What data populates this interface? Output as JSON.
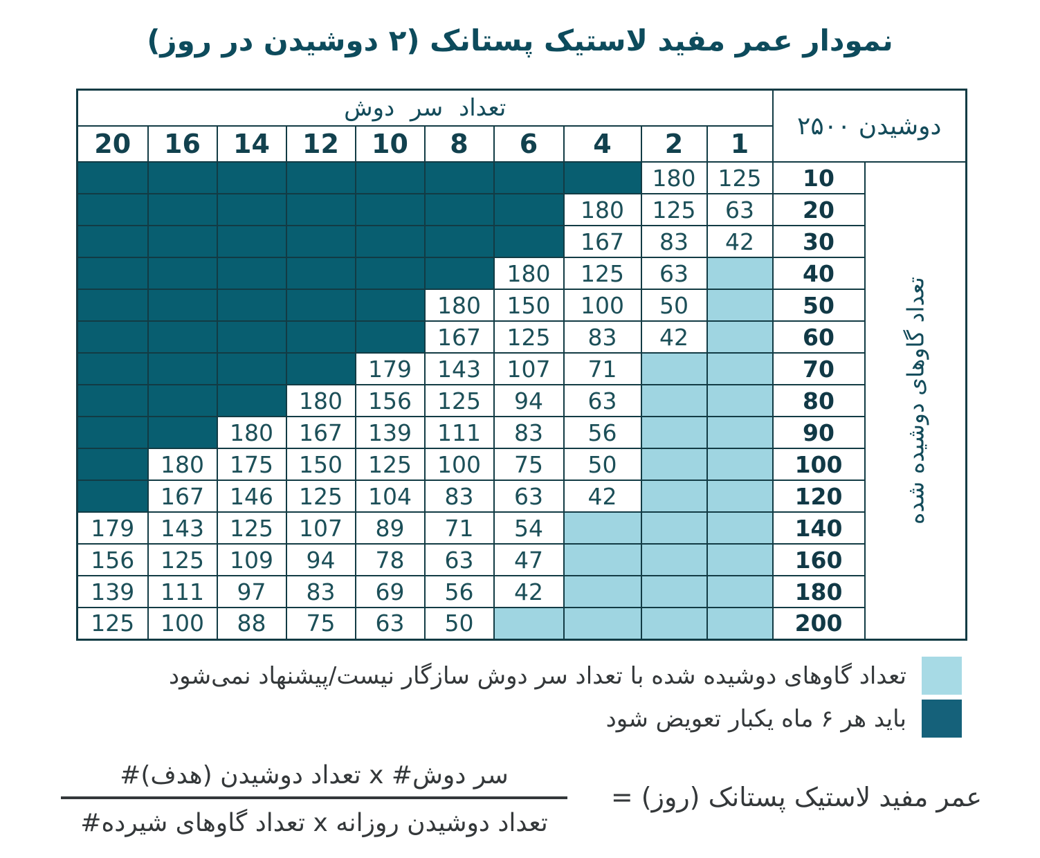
{
  "title": "نمودار عمر مفید لاستیک پستانک (۲ دوشیدن در روز)",
  "chart_data": {
    "type": "table",
    "title": "نمودار عمر مفید لاستیک پستانک (۲ دوشیدن در روز)",
    "columns_header": "تعداد سر دوش",
    "corner_label": "دوشیدن ۲۵۰۰",
    "rows_header": "تعداد گاوهای دوشیده شده",
    "columns": [
      "20",
      "16",
      "14",
      "12",
      "10",
      "8",
      "6",
      "4",
      "2",
      "1"
    ],
    "rows": [
      {
        "label": "10",
        "cells": [
          "D",
          "D",
          "D",
          "D",
          "D",
          "D",
          "D",
          "D",
          "180",
          "125"
        ]
      },
      {
        "label": "20",
        "cells": [
          "D",
          "D",
          "D",
          "D",
          "D",
          "D",
          "D",
          "180",
          "125",
          "63"
        ]
      },
      {
        "label": "30",
        "cells": [
          "D",
          "D",
          "D",
          "D",
          "D",
          "D",
          "D",
          "167",
          "83",
          "42"
        ]
      },
      {
        "label": "40",
        "cells": [
          "D",
          "D",
          "D",
          "D",
          "D",
          "D",
          "180",
          "125",
          "63",
          "L"
        ]
      },
      {
        "label": "50",
        "cells": [
          "D",
          "D",
          "D",
          "D",
          "D",
          "180",
          "150",
          "100",
          "50",
          "L"
        ]
      },
      {
        "label": "60",
        "cells": [
          "D",
          "D",
          "D",
          "D",
          "D",
          "167",
          "125",
          "83",
          "42",
          "L"
        ]
      },
      {
        "label": "70",
        "cells": [
          "D",
          "D",
          "D",
          "D",
          "179",
          "143",
          "107",
          "71",
          "L",
          "L"
        ]
      },
      {
        "label": "80",
        "cells": [
          "D",
          "D",
          "D",
          "180",
          "156",
          "125",
          "94",
          "63",
          "L",
          "L"
        ]
      },
      {
        "label": "90",
        "cells": [
          "D",
          "D",
          "180",
          "167",
          "139",
          "111",
          "83",
          "56",
          "L",
          "L"
        ]
      },
      {
        "label": "100",
        "cells": [
          "D",
          "180",
          "175",
          "150",
          "125",
          "100",
          "75",
          "50",
          "L",
          "L"
        ]
      },
      {
        "label": "120",
        "cells": [
          "D",
          "167",
          "146",
          "125",
          "104",
          "83",
          "63",
          "42",
          "L",
          "L"
        ]
      },
      {
        "label": "140",
        "cells": [
          "179",
          "143",
          "125",
          "107",
          "89",
          "71",
          "54",
          "L",
          "L",
          "L"
        ]
      },
      {
        "label": "160",
        "cells": [
          "156",
          "125",
          "109",
          "94",
          "78",
          "63",
          "47",
          "L",
          "L",
          "L"
        ]
      },
      {
        "label": "180",
        "cells": [
          "139",
          "111",
          "97",
          "83",
          "69",
          "56",
          "42",
          "L",
          "L",
          "L"
        ]
      },
      {
        "label": "200",
        "cells": [
          "125",
          "100",
          "88",
          "75",
          "63",
          "50",
          "L",
          "L",
          "L",
          "L"
        ]
      }
    ],
    "cell_codes": {
      "D": "باید هر ۶ ماه یکبار تعویض شود",
      "L": "تعداد گاوهای دوشیده شده با تعداد سر دوش سازگار نیست/پیشنهاد نمی‌شود"
    },
    "legend": [
      {
        "swatch": "light",
        "label": "تعداد گاوهای دوشیده شده با تعداد سر دوش سازگار نیست/پیشنهاد نمی‌شود"
      },
      {
        "swatch": "dark",
        "label": "باید هر ۶ ماه یکبار تعویض شود"
      }
    ],
    "legend_position": "bottom-right"
  },
  "formula": {
    "lhs": "عمر مفید لاستیک پستانک (روز) =",
    "numerator": "سر دوش# x تعداد دوشیدن (هدف)#",
    "denominator": "تعداد دوشیدن روزانه x تعداد گاوهای شیرده#"
  },
  "colors": {
    "dark_cell": "#085E70",
    "light_cell": "#9FD5E1",
    "legend_dark": "#15617A",
    "legend_light": "#A7DAE5",
    "border": "#123B44",
    "title_text": "#0D4B5C",
    "number_text": "#1C4F58",
    "header_text": "#134B5A",
    "body_text": "#34383A"
  }
}
